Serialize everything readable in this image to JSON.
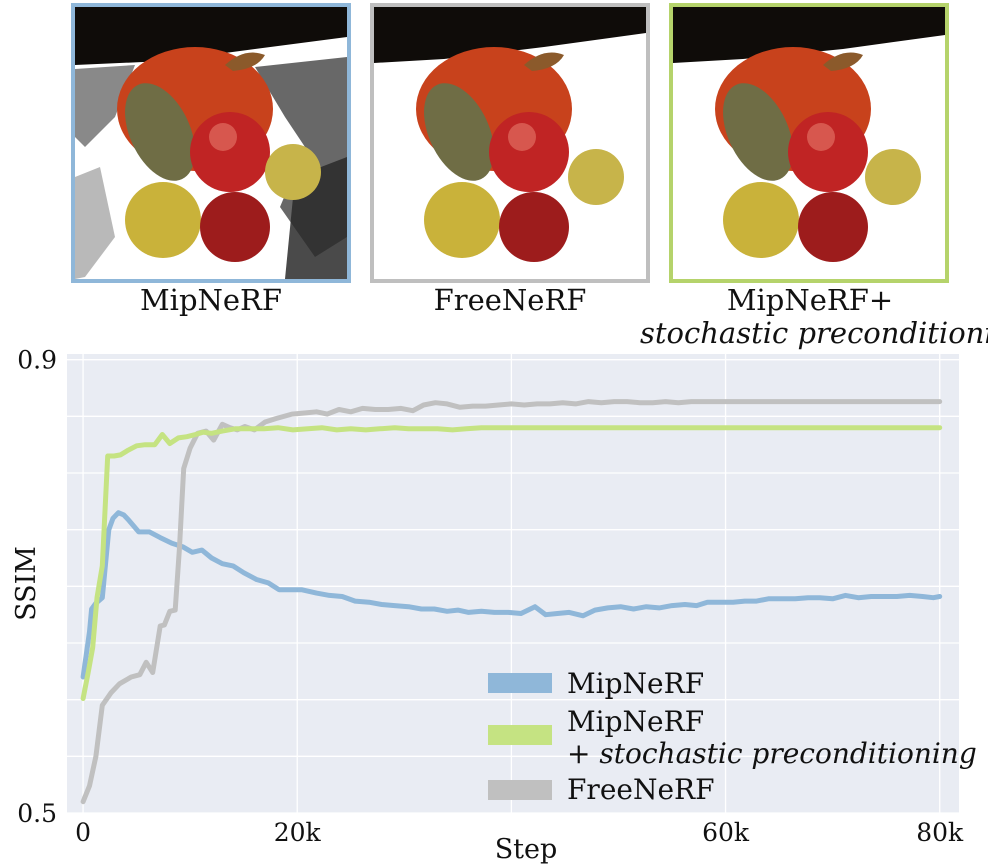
{
  "panels": [
    {
      "caption": "MipNeRF",
      "border_color": "#8fb7d9"
    },
    {
      "caption": "FreeNeRF",
      "border_color": "#bfbfbf"
    },
    {
      "caption_line1": "MipNeRF+",
      "caption_line2": "stochastic preconditioning",
      "border_color": "#b5d36b"
    }
  ],
  "chart_data": {
    "type": "line",
    "xlabel": "Step",
    "ylabel": "SSIM",
    "xlim": [
      -1500,
      81800
    ],
    "ylim": [
      0.5,
      0.905
    ],
    "xticks": [
      {
        "value": 0,
        "label": "0"
      },
      {
        "value": 20000,
        "label": "20k"
      },
      {
        "value": 60000,
        "label": "60k"
      },
      {
        "value": 80000,
        "label": "80k"
      }
    ],
    "yticks": [
      {
        "value": 0.5,
        "label": "0.5"
      },
      {
        "value": 0.9,
        "label": "0.9"
      }
    ],
    "minor_ygrid": [
      0.55,
      0.6,
      0.65,
      0.7,
      0.75,
      0.8,
      0.85
    ],
    "minor_xgrid": [
      40000
    ],
    "legend": {
      "placement": "lower-right"
    },
    "series": [
      {
        "key": "mipnerf",
        "name": "MipNeRF",
        "color": "#8fb7d9",
        "points": [
          [
            0,
            0.62
          ],
          [
            300,
            0.64
          ],
          [
            600,
            0.66
          ],
          [
            800,
            0.68
          ],
          [
            1200,
            0.685
          ],
          [
            1800,
            0.69
          ],
          [
            2400,
            0.75
          ],
          [
            2800,
            0.76
          ],
          [
            3300,
            0.765
          ],
          [
            3800,
            0.763
          ],
          [
            4300,
            0.758
          ],
          [
            5200,
            0.748
          ],
          [
            6200,
            0.748
          ],
          [
            7200,
            0.743
          ],
          [
            8300,
            0.738
          ],
          [
            9300,
            0.735
          ],
          [
            10200,
            0.73
          ],
          [
            11100,
            0.732
          ],
          [
            12000,
            0.725
          ],
          [
            13000,
            0.72
          ],
          [
            14000,
            0.718
          ],
          [
            15000,
            0.712
          ],
          [
            16200,
            0.706
          ],
          [
            17300,
            0.703
          ],
          [
            18300,
            0.697
          ],
          [
            19300,
            0.697
          ],
          [
            20400,
            0.697
          ],
          [
            21800,
            0.694
          ],
          [
            23000,
            0.692
          ],
          [
            24200,
            0.691
          ],
          [
            25400,
            0.687
          ],
          [
            26700,
            0.686
          ],
          [
            27900,
            0.684
          ],
          [
            29100,
            0.683
          ],
          [
            30400,
            0.682
          ],
          [
            31600,
            0.68
          ],
          [
            32800,
            0.68
          ],
          [
            34000,
            0.678
          ],
          [
            35000,
            0.679
          ],
          [
            36000,
            0.677
          ],
          [
            37200,
            0.678
          ],
          [
            38400,
            0.677
          ],
          [
            39700,
            0.677
          ],
          [
            40900,
            0.676
          ],
          [
            42200,
            0.682
          ],
          [
            43200,
            0.675
          ],
          [
            44300,
            0.676
          ],
          [
            45400,
            0.677
          ],
          [
            46700,
            0.674
          ],
          [
            47800,
            0.679
          ],
          [
            49000,
            0.681
          ],
          [
            50200,
            0.682
          ],
          [
            51400,
            0.68
          ],
          [
            52600,
            0.682
          ],
          [
            53800,
            0.681
          ],
          [
            55000,
            0.683
          ],
          [
            56200,
            0.684
          ],
          [
            57300,
            0.683
          ],
          [
            58300,
            0.686
          ],
          [
            59500,
            0.686
          ],
          [
            60700,
            0.686
          ],
          [
            61800,
            0.687
          ],
          [
            62900,
            0.687
          ],
          [
            64000,
            0.689
          ],
          [
            65200,
            0.689
          ],
          [
            66500,
            0.689
          ],
          [
            67700,
            0.69
          ],
          [
            68800,
            0.69
          ],
          [
            70000,
            0.689
          ],
          [
            71200,
            0.692
          ],
          [
            72400,
            0.69
          ],
          [
            73600,
            0.691
          ],
          [
            74800,
            0.691
          ],
          [
            76000,
            0.691
          ],
          [
            77200,
            0.692
          ],
          [
            78400,
            0.691
          ],
          [
            79400,
            0.69
          ],
          [
            80000,
            0.691
          ]
        ]
      },
      {
        "key": "stochastic",
        "name": "MipNeRF",
        "name_line2_prefix": "+ ",
        "name_line2_italic": "stochastic preconditioning",
        "color": "#c5e382",
        "points": [
          [
            0,
            0.601
          ],
          [
            500,
            0.625
          ],
          [
            900,
            0.646
          ],
          [
            1300,
            0.69
          ],
          [
            1800,
            0.718
          ],
          [
            2300,
            0.815
          ],
          [
            2900,
            0.815
          ],
          [
            3500,
            0.816
          ],
          [
            4200,
            0.82
          ],
          [
            5000,
            0.824
          ],
          [
            5800,
            0.825
          ],
          [
            6700,
            0.825
          ],
          [
            7400,
            0.834
          ],
          [
            8100,
            0.826
          ],
          [
            8900,
            0.831
          ],
          [
            9700,
            0.832
          ],
          [
            10500,
            0.834
          ],
          [
            11200,
            0.836
          ],
          [
            12000,
            0.835
          ],
          [
            13000,
            0.837
          ],
          [
            14200,
            0.839
          ],
          [
            15600,
            0.839
          ],
          [
            16900,
            0.839
          ],
          [
            18200,
            0.84
          ],
          [
            19600,
            0.838
          ],
          [
            21000,
            0.839
          ],
          [
            22300,
            0.84
          ],
          [
            23700,
            0.838
          ],
          [
            25000,
            0.839
          ],
          [
            26400,
            0.838
          ],
          [
            27700,
            0.839
          ],
          [
            29100,
            0.84
          ],
          [
            30400,
            0.839
          ],
          [
            31800,
            0.839
          ],
          [
            33100,
            0.839
          ],
          [
            34500,
            0.838
          ],
          [
            35800,
            0.839
          ],
          [
            37200,
            0.84
          ],
          [
            38600,
            0.84
          ],
          [
            40000,
            0.84
          ],
          [
            42000,
            0.84
          ],
          [
            44000,
            0.84
          ],
          [
            46000,
            0.84
          ],
          [
            48000,
            0.84
          ],
          [
            50000,
            0.84
          ],
          [
            52000,
            0.84
          ],
          [
            54000,
            0.84
          ],
          [
            56000,
            0.84
          ],
          [
            58000,
            0.84
          ],
          [
            60000,
            0.84
          ],
          [
            62000,
            0.84
          ],
          [
            64000,
            0.84
          ],
          [
            66000,
            0.84
          ],
          [
            68000,
            0.84
          ],
          [
            70000,
            0.84
          ],
          [
            72000,
            0.84
          ],
          [
            74000,
            0.84
          ],
          [
            76000,
            0.84
          ],
          [
            78000,
            0.84
          ],
          [
            80000,
            0.84
          ]
        ]
      },
      {
        "key": "freenerf",
        "name": "FreeNeRF",
        "color": "#c0c0c0",
        "points": [
          [
            0,
            0.51
          ],
          [
            600,
            0.524
          ],
          [
            1200,
            0.55
          ],
          [
            1800,
            0.595
          ],
          [
            2600,
            0.606
          ],
          [
            3400,
            0.614
          ],
          [
            4500,
            0.62
          ],
          [
            5300,
            0.622
          ],
          [
            5900,
            0.633
          ],
          [
            6500,
            0.624
          ],
          [
            7200,
            0.665
          ],
          [
            7600,
            0.666
          ],
          [
            8100,
            0.678
          ],
          [
            8600,
            0.679
          ],
          [
            9000,
            0.733
          ],
          [
            9400,
            0.804
          ],
          [
            10000,
            0.822
          ],
          [
            10700,
            0.835
          ],
          [
            11500,
            0.837
          ],
          [
            12200,
            0.829
          ],
          [
            13000,
            0.843
          ],
          [
            13700,
            0.84
          ],
          [
            14400,
            0.838
          ],
          [
            15100,
            0.841
          ],
          [
            16000,
            0.838
          ],
          [
            17000,
            0.845
          ],
          [
            18000,
            0.848
          ],
          [
            19500,
            0.852
          ],
          [
            20800,
            0.853
          ],
          [
            21800,
            0.854
          ],
          [
            22800,
            0.852
          ],
          [
            23900,
            0.856
          ],
          [
            25000,
            0.854
          ],
          [
            26100,
            0.857
          ],
          [
            27300,
            0.856
          ],
          [
            28500,
            0.856
          ],
          [
            29700,
            0.857
          ],
          [
            30800,
            0.855
          ],
          [
            31800,
            0.86
          ],
          [
            32900,
            0.862
          ],
          [
            34000,
            0.861
          ],
          [
            35200,
            0.858
          ],
          [
            36400,
            0.859
          ],
          [
            37600,
            0.859
          ],
          [
            38800,
            0.86
          ],
          [
            40000,
            0.861
          ],
          [
            41200,
            0.86
          ],
          [
            42400,
            0.861
          ],
          [
            43600,
            0.861
          ],
          [
            44800,
            0.862
          ],
          [
            46000,
            0.861
          ],
          [
            47200,
            0.863
          ],
          [
            48400,
            0.862
          ],
          [
            49600,
            0.863
          ],
          [
            50800,
            0.863
          ],
          [
            52000,
            0.862
          ],
          [
            53200,
            0.862
          ],
          [
            54400,
            0.863
          ],
          [
            55600,
            0.862
          ],
          [
            56800,
            0.863
          ],
          [
            58000,
            0.863
          ],
          [
            60000,
            0.863
          ],
          [
            62000,
            0.863
          ],
          [
            64000,
            0.863
          ],
          [
            66000,
            0.863
          ],
          [
            68000,
            0.863
          ],
          [
            70000,
            0.863
          ],
          [
            72000,
            0.863
          ],
          [
            74000,
            0.863
          ],
          [
            76000,
            0.863
          ],
          [
            78000,
            0.863
          ],
          [
            80000,
            0.863
          ]
        ]
      }
    ]
  }
}
